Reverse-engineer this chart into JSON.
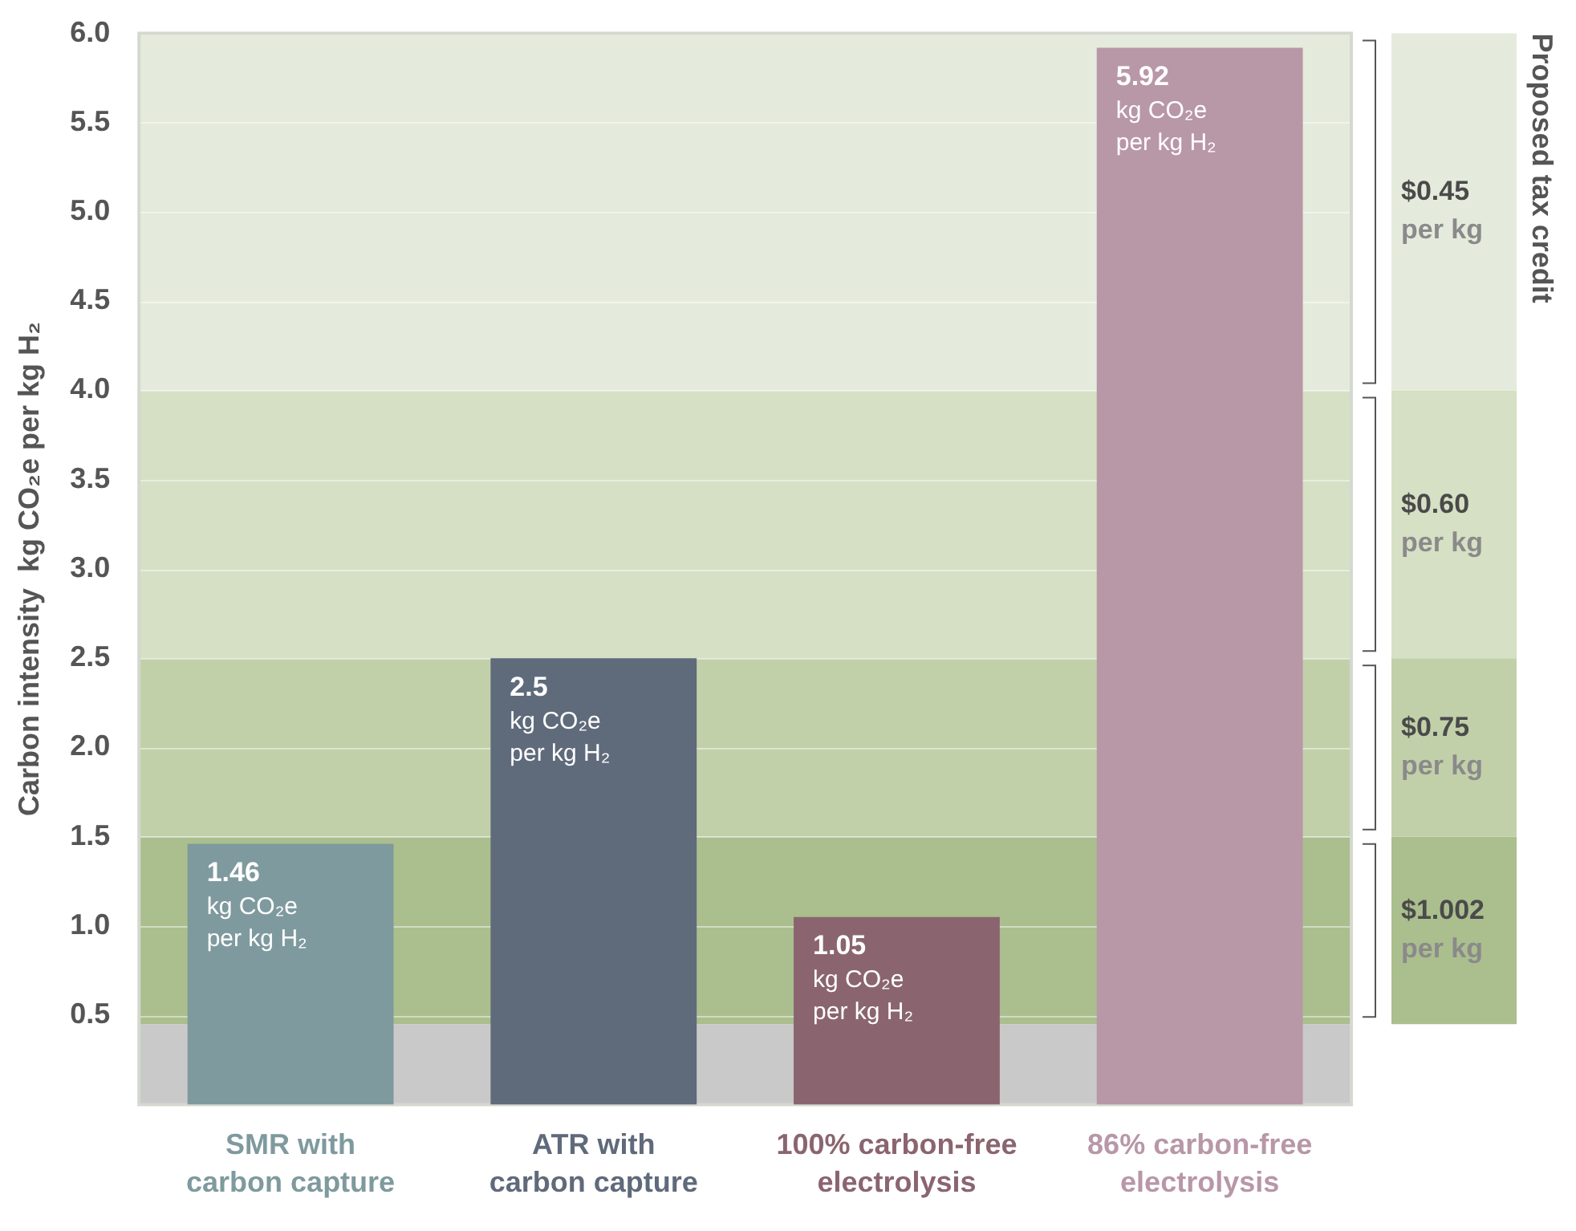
{
  "chart_data": {
    "type": "bar",
    "ylabel": "Carbon intensity  kg CO₂e per kg H₂",
    "annotations": [
      "Proposed tax credit"
    ],
    "categories": [
      "SMR with\ncarbon capture",
      "ATR with\ncarbon capture",
      "100% carbon-free\nelectrolysis",
      "86% carbon-free\nelectrolysis"
    ],
    "values": [
      1.46,
      2.5,
      1.05,
      5.92
    ],
    "colors": [
      "#7f9a9e",
      "#5f6a7b",
      "#8a6570",
      "#b897a7"
    ],
    "value_labels": [
      "1.46\nkg CO₂e\nper kg H₂",
      "2.5\nkg CO₂e\nper kg H₂",
      "1.05\nkg CO₂e\nper kg H₂",
      "5.92\nkg CO₂e\nper kg H₂"
    ],
    "ylim": [
      0,
      6
    ],
    "yticks": [
      0.5,
      {
        "value": 1,
        "label": "1.0"
      },
      1.5,
      {
        "value": 2,
        "label": "2.0"
      },
      2.5,
      {
        "value": 3,
        "label": "3.0"
      },
      3.5,
      {
        "value": 4,
        "label": "4.0"
      },
      4.5,
      {
        "value": 5,
        "label": "5.0"
      },
      5.5,
      {
        "value": 6,
        "label": "6.0"
      }
    ],
    "grid": "y",
    "bands": [
      {
        "axis": "y",
        "from": 0,
        "to": 0.45,
        "label": null,
        "color": "#c9c9c9"
      },
      {
        "axis": "y",
        "from": 0.45,
        "to": 1.5,
        "label": "$1.002\nper kg",
        "color": "#abbe8e"
      },
      {
        "axis": "y",
        "from": 1.5,
        "to": 2.5,
        "label": "$0.75\nper kg",
        "color": "#c2d0aa"
      },
      {
        "axis": "y",
        "from": 2.5,
        "to": 4,
        "label": "$0.60\nper kg",
        "color": "#d6e0c4"
      },
      {
        "axis": "y",
        "from": 4,
        "to": 6,
        "label": "$0.45\nper kg",
        "color": "#e5ebdc"
      }
    ]
  }
}
